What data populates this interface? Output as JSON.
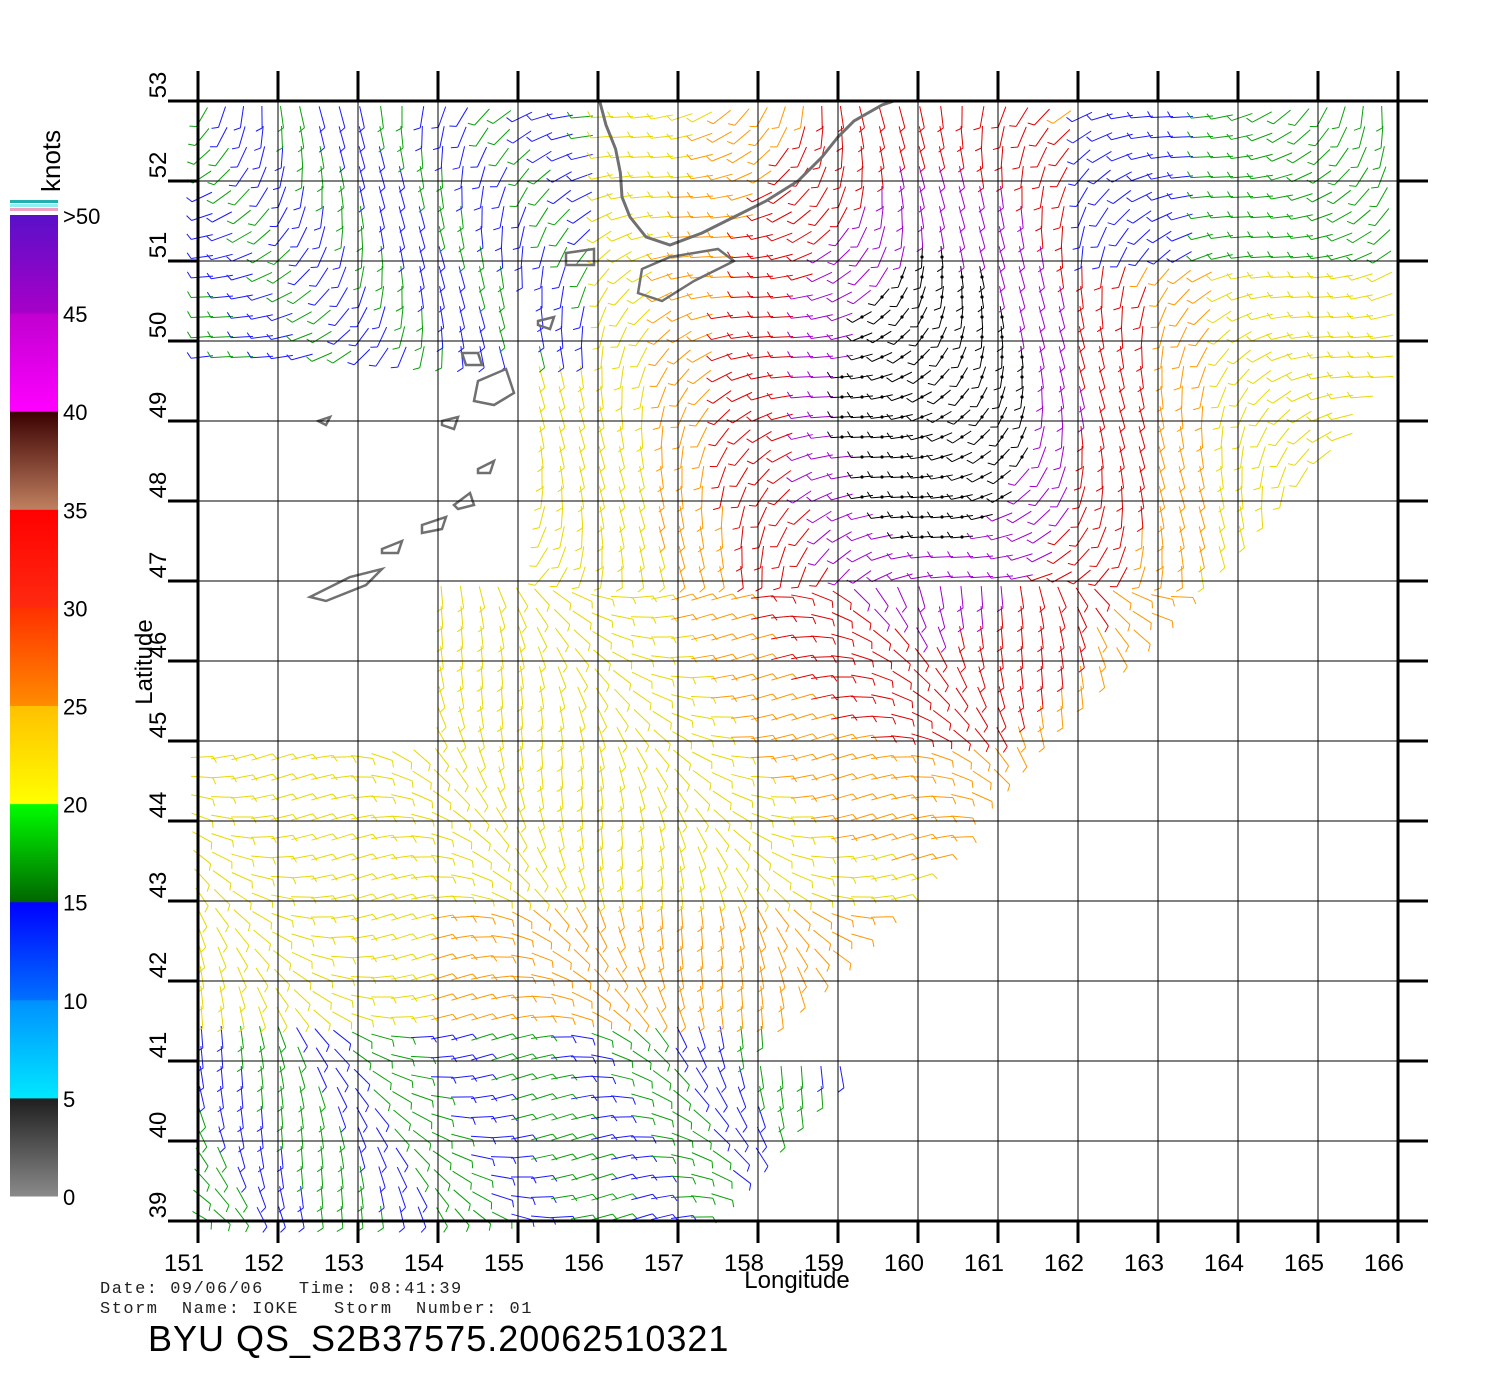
{
  "map": {
    "lon_range": [
      151,
      166
    ],
    "lat_range": [
      39,
      53
    ],
    "lon_ticks": [
      "151",
      "152",
      "153",
      "154",
      "155",
      "156",
      "157",
      "158",
      "159",
      "160",
      "161",
      "162",
      "163",
      "164",
      "165",
      "166"
    ],
    "lat_ticks": [
      "39",
      "40",
      "41",
      "42",
      "43",
      "44",
      "45",
      "46",
      "47",
      "48",
      "49",
      "50",
      "51",
      "52",
      "53"
    ],
    "xlabel": "Longitude",
    "ylabel": "Latitude",
    "grid": true,
    "coastline_color": "#707070"
  },
  "colorbar": {
    "unit": "knots",
    "labels": [
      "0",
      "5",
      "10",
      "15",
      "20",
      "25",
      "30",
      "35",
      "40",
      "45",
      ">50"
    ],
    "segments": [
      {
        "from": 0,
        "to": 5,
        "colors": [
          "#8a8a8a",
          "#1e1e1e"
        ]
      },
      {
        "from": 5,
        "to": 10,
        "colors": [
          "#00e8ff",
          "#0090ff"
        ]
      },
      {
        "from": 10,
        "to": 15,
        "colors": [
          "#0070ff",
          "#0000ff"
        ]
      },
      {
        "from": 15,
        "to": 20,
        "colors": [
          "#006600",
          "#00ff00"
        ]
      },
      {
        "from": 20,
        "to": 25,
        "colors": [
          "#ffff00",
          "#ffc000"
        ]
      },
      {
        "from": 25,
        "to": 30,
        "colors": [
          "#ff8c00",
          "#ff3000"
        ]
      },
      {
        "from": 30,
        "to": 35,
        "colors": [
          "#ff2a10",
          "#ff0000"
        ]
      },
      {
        "from": 35,
        "to": 40,
        "colors": [
          "#c08060",
          "#3a0000"
        ]
      },
      {
        "from": 40,
        "to": 45,
        "colors": [
          "#ff00ff",
          "#c000d0"
        ]
      },
      {
        "from": 45,
        "to": 50,
        "colors": [
          "#a800c8",
          "#5a10c8"
        ]
      }
    ],
    "top_stripes": [
      "#20b0b0",
      "#90f0f0",
      "#f0a0c0"
    ]
  },
  "wind_colors": {
    "calm": "#1a1aff",
    "light": "#0aa00a",
    "moderate": "#e8d800",
    "fresh": "#ff9800",
    "strong": "#e00000",
    "gale": "#a000d0",
    "storm": "#000000"
  },
  "info": {
    "line1": "Date: 09/06/06   Time: 08:41:39",
    "line2": "Storm  Name: IOKE   Storm  Number: 01"
  },
  "title": "BYU  QS_S2B37575.20062510321"
}
